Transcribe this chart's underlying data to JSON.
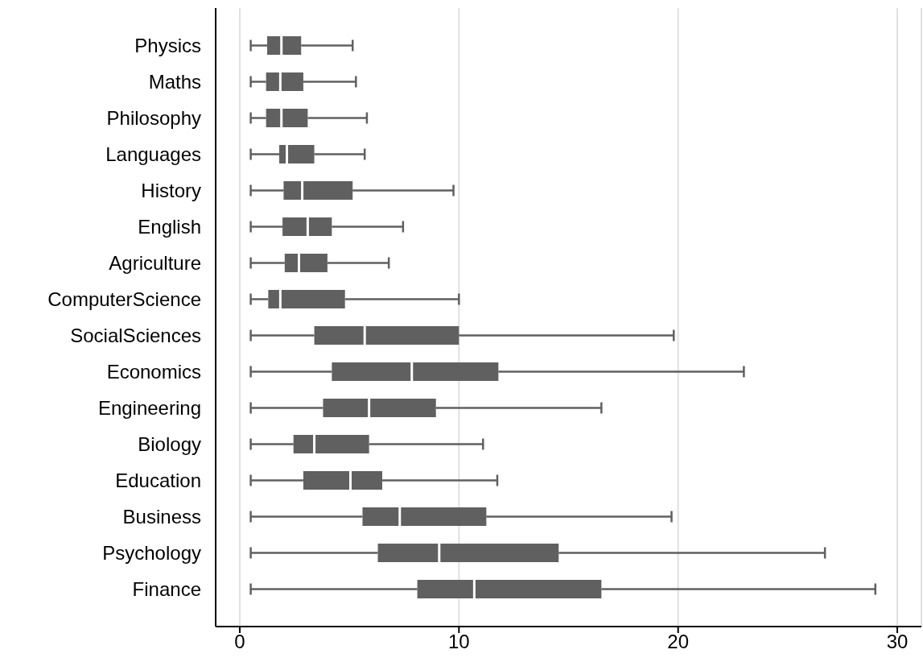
{
  "chart_data": {
    "type": "box",
    "orientation": "horizontal",
    "categories": [
      "Physics",
      "Maths",
      "Philosophy",
      "Languages",
      "History",
      "English",
      "Agriculture",
      "ComputerScience",
      "SocialSciences",
      "Economics",
      "Engineering",
      "Biology",
      "Education",
      "Business",
      "Psychology",
      "Finance"
    ],
    "color": "#606060",
    "boxes": [
      {
        "low": 0.5,
        "q1": 1.25,
        "median": 1.9,
        "q3": 2.8,
        "high": 5.15
      },
      {
        "low": 0.5,
        "q1": 1.2,
        "median": 1.85,
        "q3": 2.9,
        "high": 5.3
      },
      {
        "low": 0.5,
        "q1": 1.2,
        "median": 1.9,
        "q3": 3.1,
        "high": 5.8
      },
      {
        "low": 0.5,
        "q1": 1.8,
        "median": 2.15,
        "q3": 3.4,
        "high": 5.7
      },
      {
        "low": 0.5,
        "q1": 2.0,
        "median": 2.85,
        "q3": 5.15,
        "high": 9.75
      },
      {
        "low": 0.5,
        "q1": 1.95,
        "median": 3.1,
        "q3": 4.2,
        "high": 7.45
      },
      {
        "low": 0.5,
        "q1": 2.05,
        "median": 2.7,
        "q3": 4.0,
        "high": 6.8
      },
      {
        "low": 0.5,
        "q1": 1.3,
        "median": 1.85,
        "q3": 4.8,
        "high": 10.0
      },
      {
        "low": 0.5,
        "q1": 3.4,
        "median": 5.7,
        "q3": 10.0,
        "high": 19.8
      },
      {
        "low": 0.5,
        "q1": 4.2,
        "median": 7.85,
        "q3": 11.8,
        "high": 23.0
      },
      {
        "low": 0.5,
        "q1": 3.8,
        "median": 5.9,
        "q3": 8.95,
        "high": 16.5
      },
      {
        "low": 0.5,
        "q1": 2.45,
        "median": 3.4,
        "q3": 5.9,
        "high": 11.1
      },
      {
        "low": 0.5,
        "q1": 2.9,
        "median": 5.05,
        "q3": 6.5,
        "high": 11.75
      },
      {
        "low": 0.5,
        "q1": 5.6,
        "median": 7.3,
        "q3": 11.25,
        "high": 19.7
      },
      {
        "low": 0.5,
        "q1": 6.3,
        "median": 9.1,
        "q3": 14.55,
        "high": 26.7
      },
      {
        "low": 0.5,
        "q1": 8.1,
        "median": 10.7,
        "q3": 16.5,
        "high": 29.0
      }
    ],
    "xlim": [
      -1.1,
      31.1
    ],
    "xticks": [
      0,
      10,
      20,
      30
    ],
    "grid": "x"
  }
}
